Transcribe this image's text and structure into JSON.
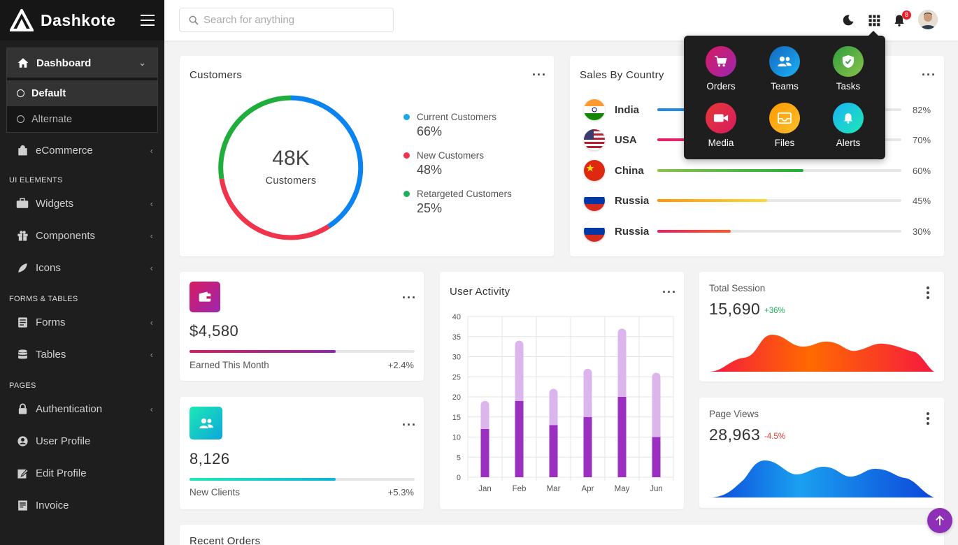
{
  "brand": {
    "name": "Dashkote"
  },
  "sidebar": {
    "dashboard": {
      "label": "Dashboard",
      "sub": [
        {
          "label": "Default"
        },
        {
          "label": "Alternate"
        }
      ]
    },
    "ecommerce": "eCommerce",
    "sections": {
      "ui": "UI ELEMENTS",
      "forms": "FORMS & TABLES",
      "pages": "PAGES"
    },
    "items": {
      "widgets": "Widgets",
      "components": "Components",
      "icons": "Icons",
      "forms": "Forms",
      "tables": "Tables",
      "authentication": "Authentication",
      "user_profile": "User Profile",
      "edit_profile": "Edit Profile",
      "invoice": "Invoice"
    }
  },
  "header": {
    "search_placeholder": "Search for anything",
    "notifications_count": "8"
  },
  "apps_menu": {
    "items": [
      {
        "label": "Orders",
        "icon": "cart-icon",
        "color": "#c2185b"
      },
      {
        "label": "Teams",
        "icon": "users-icon",
        "color": "#1e88e5"
      },
      {
        "label": "Tasks",
        "icon": "shield-check-icon",
        "color": "#43a047"
      },
      {
        "label": "Media",
        "icon": "video-icon",
        "color": "#e53935"
      },
      {
        "label": "Files",
        "icon": "folder-icon",
        "color": "#f9a825"
      },
      {
        "label": "Alerts",
        "icon": "bell-icon",
        "color": "#26a69a"
      }
    ]
  },
  "customers": {
    "title": "Customers",
    "center_value": "48K",
    "center_label": "Customers",
    "legend": [
      {
        "label": "Current Customers",
        "value": "66%",
        "color": "#1ea7e1"
      },
      {
        "label": "New Customers",
        "value": "48%",
        "color": "#f0344b"
      },
      {
        "label": "Retargeted Customers",
        "value": "25%",
        "color": "#1fae5c"
      }
    ]
  },
  "sales_by_country": {
    "title": "Sales By Country",
    "rows": [
      {
        "country": "India",
        "pct": "82%",
        "value": 82,
        "color": "#1e88e5"
      },
      {
        "country": "USA",
        "pct": "70%",
        "value": 70,
        "color": "#e91e63"
      },
      {
        "country": "China",
        "pct": "60%",
        "value": 60,
        "color": "#43a047"
      },
      {
        "country": "Russia",
        "pct": "45%",
        "value": 45,
        "color": "#fbc02d"
      },
      {
        "country": "Russia",
        "pct": "30%",
        "value": 30,
        "color": "#e91e63"
      }
    ]
  },
  "earnings": {
    "value": "$4,580",
    "label": "Earned This Month",
    "change": "+2.4%",
    "progress": 0.65
  },
  "clients": {
    "value": "8,126",
    "label": "New Clients",
    "change": "+5.3%",
    "progress": 0.65
  },
  "user_activity": {
    "title": "User Activity"
  },
  "chart_data": {
    "type": "bar",
    "categories": [
      "Jan",
      "Feb",
      "Mar",
      "Apr",
      "May",
      "Jun"
    ],
    "series": [
      {
        "values": [
          12,
          19,
          13,
          15,
          20,
          10
        ],
        "color": "#9b30c0"
      },
      {
        "values": [
          7,
          15,
          9,
          12,
          17,
          16
        ],
        "color": "#dcb5ec"
      }
    ],
    "stacked": true,
    "ylim": [
      0,
      40
    ],
    "yticks": [
      0,
      5,
      10,
      15,
      20,
      25,
      30,
      35,
      40
    ],
    "grid": true
  },
  "total_session": {
    "title": "Total Session",
    "value": "15,690",
    "change": "+36%",
    "change_color": "#1fae5c"
  },
  "page_views": {
    "title": "Page Views",
    "value": "28,963",
    "change": "-4.5%",
    "change_color": "#e53935"
  },
  "recent_orders": {
    "title": "Recent Orders"
  }
}
